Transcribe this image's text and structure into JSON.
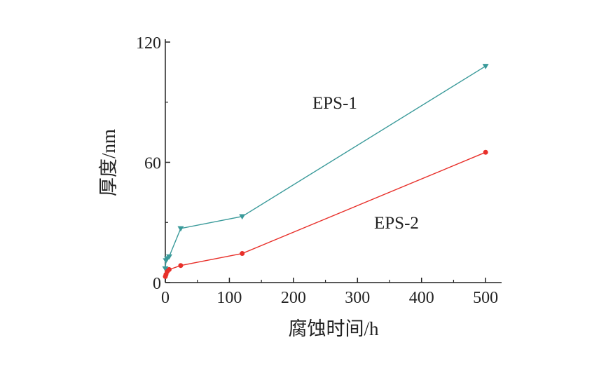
{
  "chart_data": {
    "type": "line",
    "xlabel": "腐蚀时间/h",
    "ylabel": "厚度/nm",
    "xlim": [
      0,
      525
    ],
    "ylim": [
      0,
      120
    ],
    "x_ticks": [
      0,
      100,
      200,
      300,
      400,
      500
    ],
    "y_ticks": [
      0,
      60,
      120
    ],
    "grid": false,
    "series": [
      {
        "name": "EPS-1",
        "color": "#3a9a9a",
        "marker": "triangle-down",
        "x": [
          0,
          1,
          3,
          6,
          24,
          120,
          500
        ],
        "y": [
          7,
          11,
          12,
          13,
          27,
          33,
          108
        ]
      },
      {
        "name": "EPS-2",
        "color": "#e8302a",
        "marker": "circle",
        "x": [
          0,
          1,
          3,
          6,
          24,
          120,
          500
        ],
        "y": [
          3,
          4,
          5.5,
          6.5,
          8.5,
          14.5,
          65
        ]
      }
    ]
  }
}
